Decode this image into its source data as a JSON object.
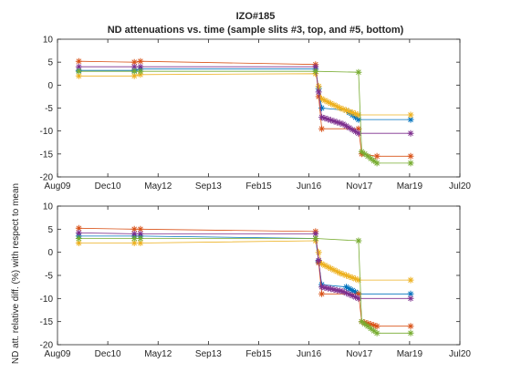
{
  "title_line1": "IZO#185",
  "title_line2": "ND attenuations vs. time (sample slits #3, top, and #5, bottom)",
  "ylabel_top": "",
  "ylabel_bottom": "ND att. relative diff. (%) with respect to mean",
  "chart_data": [
    {
      "type": "scatter",
      "panel": "top",
      "xlim": [
        "2009-08-01",
        "2020-07-01"
      ],
      "ylim": [
        -20,
        10
      ],
      "xticks": [
        "Aug09",
        "Dec10",
        "May12",
        "Sep13",
        "Feb15",
        "Jun16",
        "Nov17",
        "Mar19",
        "Jul20"
      ],
      "yticks": [
        10,
        5,
        0,
        -5,
        -10,
        -15,
        -20
      ],
      "grid": false,
      "marker": "asterisk",
      "series": [
        {
          "color": "#0072BD",
          "points": [
            [
              "2010-03-01",
              3.2
            ],
            [
              "2011-09-01",
              3.2
            ],
            [
              "2011-11-01",
              3.5
            ],
            [
              "2016-08-01",
              3.5
            ],
            [
              "2016-10-01",
              -5.0
            ],
            [
              "2017-06-01",
              -5.5
            ],
            [
              "2017-10-01",
              -7.5
            ],
            [
              "2019-03-01",
              -7.5
            ]
          ]
        },
        {
          "color": "#D95319",
          "points": [
            [
              "2010-03-01",
              5.2
            ],
            [
              "2011-09-01",
              5.0
            ],
            [
              "2011-11-01",
              5.2
            ],
            [
              "2016-08-01",
              4.5
            ],
            [
              "2016-10-01",
              -9.5
            ],
            [
              "2017-10-01",
              -9.5
            ],
            [
              "2017-11-01",
              -15.0
            ],
            [
              "2018-04-01",
              -15.5
            ],
            [
              "2019-03-01",
              -15.5
            ]
          ]
        },
        {
          "color": "#EDB120",
          "points": [
            [
              "2010-03-01",
              2.0
            ],
            [
              "2011-09-01",
              2.0
            ],
            [
              "2011-11-01",
              2.3
            ],
            [
              "2016-08-01",
              2.5
            ],
            [
              "2016-10-01",
              -3.0
            ],
            [
              "2017-04-01",
              -5.0
            ],
            [
              "2017-10-01",
              -6.5
            ],
            [
              "2019-03-01",
              -6.5
            ]
          ]
        },
        {
          "color": "#7E2F8E",
          "points": [
            [
              "2010-03-01",
              4.0
            ],
            [
              "2011-09-01",
              4.0
            ],
            [
              "2011-11-01",
              4.0
            ],
            [
              "2016-08-01",
              4.0
            ],
            [
              "2016-10-01",
              -7.0
            ],
            [
              "2017-05-01",
              -8.5
            ],
            [
              "2017-10-01",
              -10.5
            ],
            [
              "2019-03-01",
              -10.5
            ]
          ]
        },
        {
          "color": "#77AC30",
          "points": [
            [
              "2010-03-01",
              3.0
            ],
            [
              "2011-09-01",
              3.0
            ],
            [
              "2011-11-01",
              3.0
            ],
            [
              "2016-08-01",
              3.0
            ],
            [
              "2017-10-01",
              2.8
            ],
            [
              "2017-11-01",
              -14.5
            ],
            [
              "2018-04-01",
              -17.0
            ],
            [
              "2019-03-01",
              -17.0
            ]
          ]
        }
      ]
    },
    {
      "type": "scatter",
      "panel": "bottom",
      "xlim": [
        "2009-08-01",
        "2020-07-01"
      ],
      "ylim": [
        -20,
        10
      ],
      "xticks": [
        "Aug09",
        "Dec10",
        "May12",
        "Sep13",
        "Feb15",
        "Jun16",
        "Nov17",
        "Mar19",
        "Jul20"
      ],
      "yticks": [
        10,
        5,
        0,
        -5,
        -10,
        -15,
        -20
      ],
      "grid": false,
      "marker": "asterisk",
      "series": [
        {
          "color": "#0072BD",
          "points": [
            [
              "2010-03-01",
              3.5
            ],
            [
              "2011-09-01",
              3.5
            ],
            [
              "2011-11-01",
              3.5
            ],
            [
              "2016-08-01",
              3.0
            ],
            [
              "2016-10-01",
              -7.0
            ],
            [
              "2017-06-01",
              -7.5
            ],
            [
              "2017-10-01",
              -9.0
            ],
            [
              "2019-03-01",
              -9.0
            ]
          ]
        },
        {
          "color": "#D95319",
          "points": [
            [
              "2010-03-01",
              5.2
            ],
            [
              "2011-09-01",
              5.0
            ],
            [
              "2011-11-01",
              5.0
            ],
            [
              "2016-08-01",
              4.5
            ],
            [
              "2016-10-01",
              -9.0
            ],
            [
              "2017-10-01",
              -9.0
            ],
            [
              "2017-11-01",
              -15.0
            ],
            [
              "2018-04-01",
              -16.0
            ],
            [
              "2019-03-01",
              -16.0
            ]
          ]
        },
        {
          "color": "#EDB120",
          "points": [
            [
              "2010-03-01",
              2.0
            ],
            [
              "2011-09-01",
              2.0
            ],
            [
              "2011-11-01",
              2.0
            ],
            [
              "2016-08-01",
              2.5
            ],
            [
              "2016-10-01",
              -2.5
            ],
            [
              "2017-04-01",
              -4.5
            ],
            [
              "2017-10-01",
              -6.0
            ],
            [
              "2019-03-01",
              -6.0
            ]
          ]
        },
        {
          "color": "#7E2F8E",
          "points": [
            [
              "2010-03-01",
              4.2
            ],
            [
              "2011-09-01",
              4.0
            ],
            [
              "2011-11-01",
              4.0
            ],
            [
              "2016-08-01",
              4.0
            ],
            [
              "2016-10-01",
              -7.5
            ],
            [
              "2017-05-01",
              -8.5
            ],
            [
              "2017-10-01",
              -10.0
            ],
            [
              "2019-03-01",
              -10.0
            ]
          ]
        },
        {
          "color": "#77AC30",
          "points": [
            [
              "2010-03-01",
              3.0
            ],
            [
              "2011-09-01",
              3.0
            ],
            [
              "2011-11-01",
              3.0
            ],
            [
              "2016-08-01",
              3.0
            ],
            [
              "2017-10-01",
              2.5
            ],
            [
              "2017-11-01",
              -15.0
            ],
            [
              "2018-04-01",
              -17.5
            ],
            [
              "2019-03-01",
              -17.5
            ]
          ]
        }
      ]
    }
  ]
}
